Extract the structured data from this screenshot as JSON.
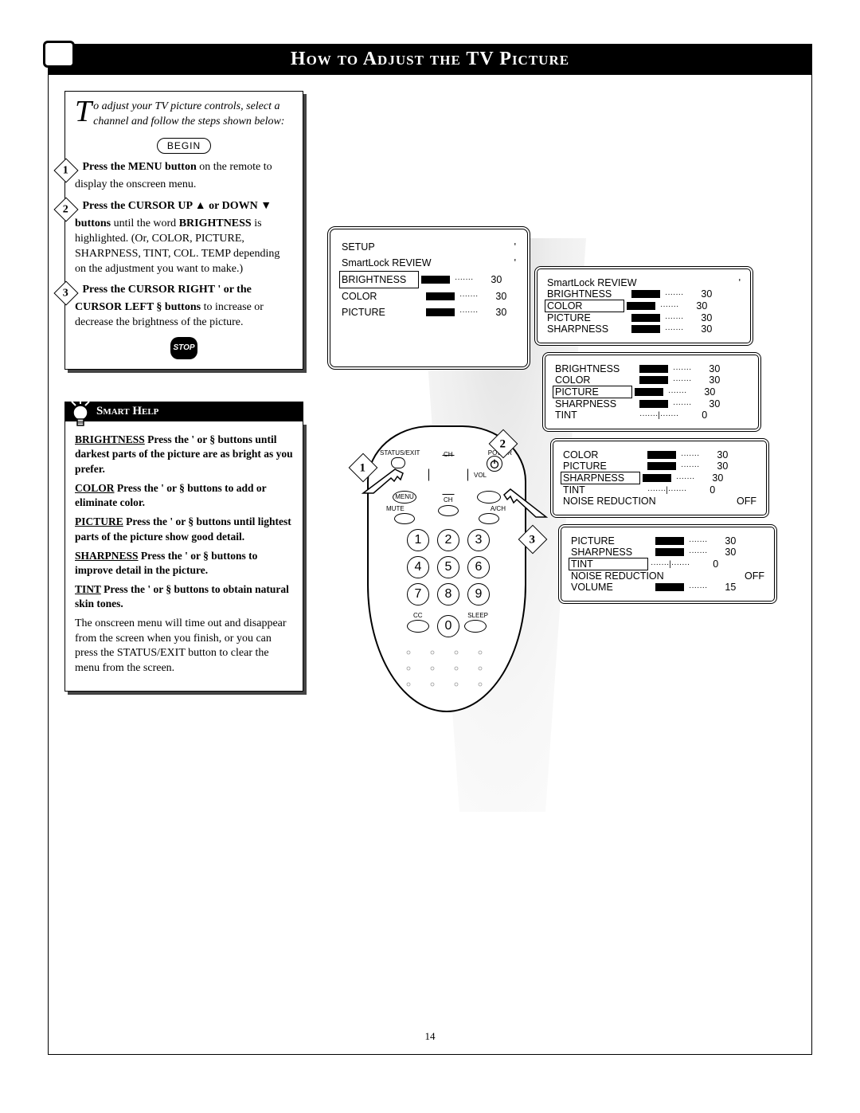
{
  "title": "How to Adjust the TV Picture",
  "page_number": "14",
  "intro": {
    "dropcap": "T",
    "text_rest": "o adjust your TV picture controls, select a channel and follow",
    "text_line2": "the steps shown below:"
  },
  "begin_label": "BEGIN",
  "steps": [
    {
      "n": "1",
      "lead": "Press the MENU button",
      "rest": " on the remote to display the onscreen menu."
    },
    {
      "n": "2",
      "lead": "Press the CURSOR UP ▲ or DOWN ▼ buttons",
      "rest": " until the word ",
      "bold2": "BRIGHTNESS",
      "rest2": " is highlighted. (Or, COLOR, PICTURE, SHARPNESS, TINT, COL. TEMP depending on the adjustment you want to make.)"
    },
    {
      "n": "3",
      "lead": "Press the CURSOR RIGHT ' or the CURSOR LEFT §  buttons",
      "rest": " to increase or decrease the brightness of the picture."
    }
  ],
  "stop_label": "STOP",
  "smart_help": {
    "header": "Smart Help",
    "items": [
      {
        "name": "BRIGHTNESS",
        "text": "  Press the ' or §  buttons until darkest parts of the picture are as bright as you prefer."
      },
      {
        "name": "COLOR",
        "text": "  Press the '  or §  buttons to add or eliminate color."
      },
      {
        "name": "PICTURE",
        "text": "  Press the '  or §  buttons until lightest parts of the picture show good detail."
      },
      {
        "name": "SHARPNESS",
        "text": "  Press the '  or §  buttons to improve detail in the picture."
      },
      {
        "name": "TINT",
        "text": "  Press the '  or §  buttons to obtain natural skin tones."
      }
    ],
    "footer": "The onscreen menu will time out and disappear from the screen when you finish, or you can press the STATUS/EXIT button to clear the menu from the screen."
  },
  "tv_osd": {
    "rows": [
      {
        "label": "SETUP",
        "marker": "'"
      },
      {
        "label": "SmartLock REVIEW",
        "marker": "'"
      },
      {
        "label": "BRIGHTNESS",
        "bar": true,
        "val": "30",
        "highlight": true
      },
      {
        "label": "COLOR",
        "bar": true,
        "val": "30"
      },
      {
        "label": "PICTURE",
        "bar": true,
        "val": "30"
      }
    ]
  },
  "panels": [
    {
      "top_text": "SmartLock REVIEW",
      "rows": [
        {
          "label": "BRIGHTNESS",
          "bar": true,
          "val": "30"
        },
        {
          "label": "COLOR",
          "bar": true,
          "val": "30",
          "highlight": true
        },
        {
          "label": "PICTURE",
          "bar": true,
          "val": "30"
        },
        {
          "label": "SHARPNESS",
          "bar": true,
          "val": "30"
        }
      ]
    },
    {
      "rows": [
        {
          "label": "BRIGHTNESS",
          "bar": true,
          "val": "30"
        },
        {
          "label": "COLOR",
          "bar": true,
          "val": "30"
        },
        {
          "label": "PICTURE",
          "bar": true,
          "val": "30",
          "highlight": true
        },
        {
          "label": "SHARPNESS",
          "bar": true,
          "val": "30"
        },
        {
          "label": "TINT",
          "bar": false,
          "val": "0"
        }
      ]
    },
    {
      "rows": [
        {
          "label": "COLOR",
          "bar": true,
          "val": "30"
        },
        {
          "label": "PICTURE",
          "bar": true,
          "val": "30"
        },
        {
          "label": "SHARPNESS",
          "bar": true,
          "val": "30",
          "highlight": true
        },
        {
          "label": "TINT",
          "bar": false,
          "val": "0"
        },
        {
          "label": "NOISE REDUCTION",
          "text_val": "OFF"
        }
      ]
    },
    {
      "rows": [
        {
          "label": "PICTURE",
          "bar": true,
          "val": "30"
        },
        {
          "label": "SHARPNESS",
          "bar": true,
          "val": "30"
        },
        {
          "label": "TINT",
          "bar": false,
          "val": "0",
          "highlight": true
        },
        {
          "label": "NOISE REDUCTION",
          "text_val": "OFF"
        },
        {
          "label": "VOLUME",
          "bar": true,
          "val": "15"
        }
      ]
    }
  ],
  "remote": {
    "labels": {
      "status": "STATUS/EXIT",
      "power": "POWER",
      "ch": "CH",
      "vol": "VOL",
      "menu": "MENU",
      "mute": "MUTE",
      "ap": "A/CH",
      "cc": "CC",
      "sleep": "SLEEP"
    },
    "numbers": [
      "1",
      "2",
      "3",
      "4",
      "5",
      "6",
      "7",
      "8",
      "9",
      "0"
    ]
  },
  "callouts": [
    "1",
    "2",
    "3"
  ]
}
